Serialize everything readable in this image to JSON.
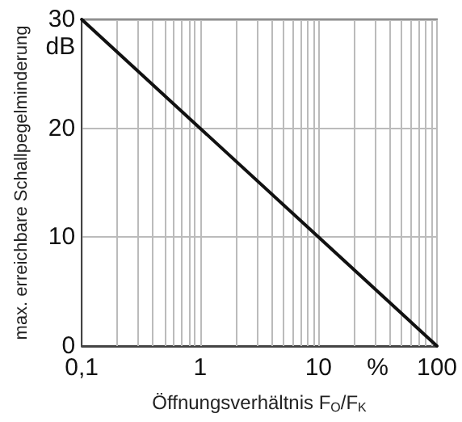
{
  "chart_data": {
    "type": "line",
    "xlabel": "Öffnungsverhältnis F$_{O}$/F$_{K}$",
    "ylabel": "max. erreichbare Schallpegelminderung",
    "annotations": [
      "dB",
      "%"
    ],
    "x": [
      0.1,
      1,
      10,
      100
    ],
    "series": [
      {
        "color": "#111111",
        "values": [
          30,
          20,
          10,
          0
        ]
      }
    ],
    "xlim": [
      0.1,
      100
    ],
    "xticks": [
      {
        "value": 0.1,
        "label": "0,1"
      },
      1,
      10,
      100
    ],
    "ylim": [
      0,
      30
    ],
    "yticks": [
      0,
      10,
      20,
      30
    ],
    "log": "x",
    "grid": true,
    "marker": "none",
    "line_style": "solid"
  }
}
